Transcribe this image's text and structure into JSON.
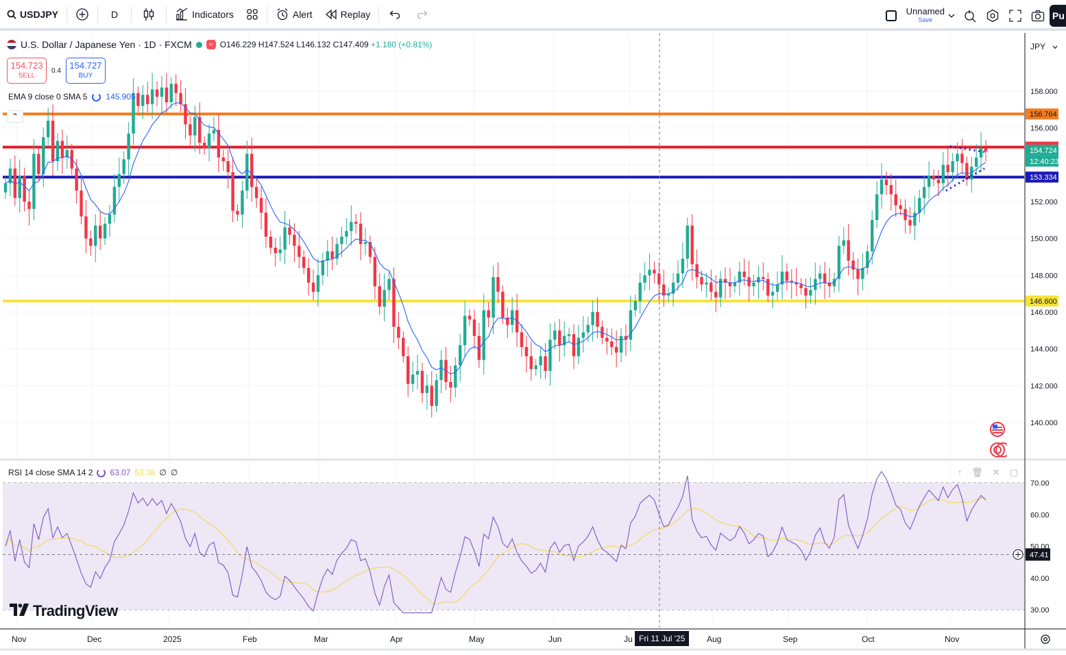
{
  "toolbar": {
    "symbol": "USDJPY",
    "interval": "D",
    "indicators_label": "Indicators",
    "alert_label": "Alert",
    "replay_label": "Replay",
    "layout_name": "Unnamed",
    "layout_save": "Save",
    "publish_label": "Pu"
  },
  "legend": {
    "title": "U.S. Dollar / Japanese Yen · 1D · FXCM",
    "open": "O146.229",
    "high": "H147.524",
    "low": "L146.132",
    "close": "C147.409",
    "change": "+1.180 (+0.81%)",
    "sell_price": "154.723",
    "sell_label": "SELL",
    "spread": "0.4",
    "buy_price": "154.727",
    "buy_label": "BUY",
    "ema_label": "EMA 9 close 0 SMA 5",
    "ema_value": "145.905",
    "collapse_symbol": "⌃"
  },
  "rsi": {
    "label": "RSI 14 close SMA 14 2",
    "rsi_value": "63.07",
    "sma_value": "52.38",
    "extra1": "∅",
    "extra2": "∅",
    "tools": [
      "↑",
      "🗑",
      "✕",
      "▢"
    ],
    "price_axis": [
      "70.00",
      "60.00",
      "50.00",
      "40.00",
      "30.00"
    ],
    "crosshair_label": "47.41"
  },
  "price_axis": {
    "currency": "JPY",
    "ticks": [
      "158.000",
      "156.000",
      "152.000",
      "150.000",
      "148.000",
      "146.000",
      "144.000",
      "142.000",
      "140.000"
    ],
    "labels": [
      {
        "text": "156.764",
        "color": "#f57c1f",
        "text_color": "#131722"
      },
      {
        "text": "154.963",
        "color": "#f23645",
        "text_color": "#ffffff"
      },
      {
        "text": "154.724",
        "color": "#22ab94",
        "text_color": "#ffffff"
      },
      {
        "text": "12:40:23",
        "color": "#22ab94",
        "text_color": "#ffffff"
      },
      {
        "text": "153.334",
        "color": "#1a1ab8",
        "text_color": "#ffffff"
      },
      {
        "text": "146.600",
        "color": "#f5e33a",
        "text_color": "#131722"
      }
    ]
  },
  "horizontal_lines": [
    {
      "price": 156.764,
      "color": "#f57c1f"
    },
    {
      "price": 154.963,
      "color": "#e01e2b"
    },
    {
      "price": 153.334,
      "color": "#1a1ab8"
    },
    {
      "price": 146.6,
      "color": "#f5e33a"
    }
  ],
  "time_axis": {
    "labels": [
      "Nov",
      "Dec",
      "2025",
      "Feb",
      "Mar",
      "Apr",
      "May",
      "Jun",
      "Ju",
      "Aug",
      "Sep",
      "Oct",
      "Nov"
    ],
    "crosshair_date": "Fri 11 Jul '25"
  },
  "branding": "TradingView",
  "colors": {
    "up": "#22ab94",
    "down": "#f23645",
    "ema": "#2962ff",
    "rsi": "#7e57c2",
    "rsi_sma": "#f5d94a",
    "rsi_band": "#ede7f6"
  },
  "chart_data": {
    "type": "candlestick",
    "ylim": [
      139,
      160
    ],
    "candles_close": [
      153.0,
      153.8,
      152.2,
      153.4,
      152.0,
      151.6,
      154.6,
      153.5,
      155.5,
      156.4,
      154.2,
      155.3,
      154.4,
      154.8,
      153.8,
      152.6,
      151.2,
      150.0,
      149.6,
      150.7,
      150.0,
      150.8,
      151.3,
      152.8,
      153.5,
      154.3,
      155.7,
      157.9,
      157.2,
      157.8,
      157.3,
      158.1,
      157.7,
      158.2,
      157.4,
      158.4,
      157.9,
      157.3,
      156.2,
      155.6,
      156.6,
      155.2,
      154.9,
      155.7,
      155.9,
      154.4,
      154.2,
      153.6,
      151.5,
      151.3,
      152.6,
      154.6,
      152.8,
      152.2,
      151.4,
      150.1,
      149.5,
      149.2,
      149.4,
      150.6,
      150.2,
      149.6,
      149.0,
      148.4,
      147.6,
      147.1,
      148.0,
      148.8,
      149.3,
      148.9,
      149.7,
      150.1,
      150.4,
      150.9,
      150.8,
      149.7,
      149.8,
      149.0,
      147.4,
      146.3,
      147.2,
      147.8,
      145.2,
      144.6,
      143.6,
      142.1,
      142.6,
      142.8,
      141.6,
      142.0,
      140.9,
      142.3,
      143.4,
      142.2,
      141.9,
      143.1,
      144.2,
      145.8,
      145.6,
      144.7,
      143.4,
      146.1,
      145.7,
      147.9,
      147.1,
      145.7,
      145.3,
      146.1,
      144.9,
      144.1,
      143.6,
      142.9,
      143.1,
      143.6,
      142.8,
      144.5,
      145.0,
      144.2,
      144.7,
      144.8,
      143.6,
      144.6,
      144.9,
      145.3,
      146.0,
      145.2,
      144.6,
      144.4,
      144.1,
      143.8,
      144.7,
      144.5,
      146.1,
      146.6,
      147.6,
      148.0,
      148.3,
      148.1,
      147.5,
      146.9,
      147.0,
      147.6,
      148.1,
      148.9,
      150.7,
      148.6,
      147.9,
      147.5,
      147.6,
      147.1,
      146.8,
      147.8,
      147.6,
      147.4,
      147.6,
      148.2,
      147.9,
      147.4,
      147.6,
      147.9,
      147.8,
      146.9,
      147.1,
      147.5,
      148.2,
      147.7,
      147.6,
      147.5,
      147.3,
      146.9,
      147.2,
      147.8,
      148.1,
      147.6,
      147.4,
      147.8,
      149.6,
      149.9,
      148.8,
      148.3,
      147.8,
      148.4,
      149.3,
      151.0,
      152.4,
      153.2,
      152.9,
      152.4,
      151.8,
      151.6,
      151.0,
      150.7,
      151.4,
      152.2,
      152.8,
      153.4,
      153.2,
      153.0,
      154.0,
      153.6,
      154.2,
      154.6,
      154.1,
      153.2,
      153.9,
      154.4,
      154.9,
      154.724
    ]
  }
}
